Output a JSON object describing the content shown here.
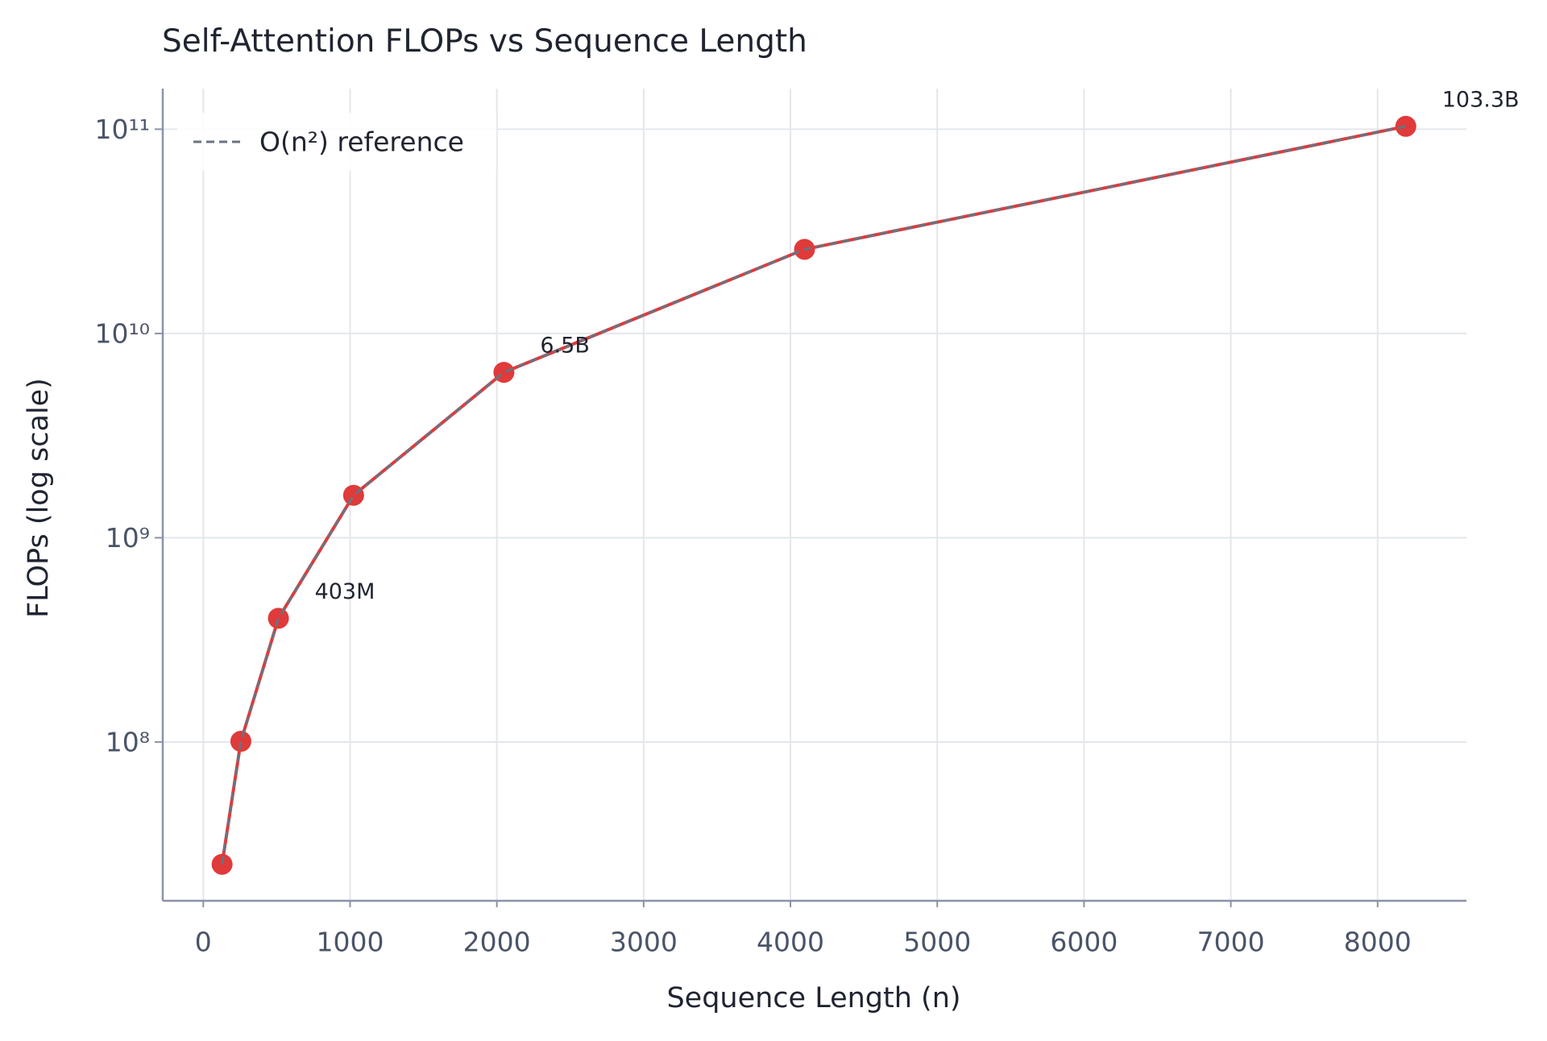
{
  "chart_data": {
    "type": "line",
    "title": "Self-Attention FLOPs vs Sequence Length",
    "x_label": "Sequence Length (n)",
    "y_label": "FLOPs (log scale)",
    "x": [
      128,
      256,
      512,
      1024,
      2048,
      4096,
      8192
    ],
    "series": [
      {
        "color": "#e03a3a",
        "values": [
          25200000,
          100800000,
          403400000,
          1614000000,
          6455000000,
          25820000000,
          103280000000
        ],
        "value_labels": [
          null,
          null,
          "403M",
          null,
          "6.5B",
          null,
          "103.3B"
        ]
      },
      {
        "name": "O(n²) reference",
        "color": "#6b7280",
        "dashed": true,
        "values": [
          25200000,
          100800000,
          403400000,
          1614000000,
          6455000000,
          25820000000,
          103280000000
        ]
      }
    ],
    "xlim": [
      -276,
      8605
    ],
    "xticks": [
      0,
      1000,
      2000,
      3000,
      4000,
      5000,
      6000,
      7000,
      8000
    ],
    "ylim": [
      16700000,
      158000000000
    ],
    "yticks": [
      {
        "value": 100000000,
        "label": "10⁸"
      },
      {
        "value": 1000000000,
        "label": "10⁹"
      },
      {
        "value": 10000000000,
        "label": "10¹⁰"
      },
      {
        "value": 100000000000,
        "label": "10¹¹"
      }
    ],
    "y_log": true,
    "grid": true,
    "legend": "upper left"
  }
}
